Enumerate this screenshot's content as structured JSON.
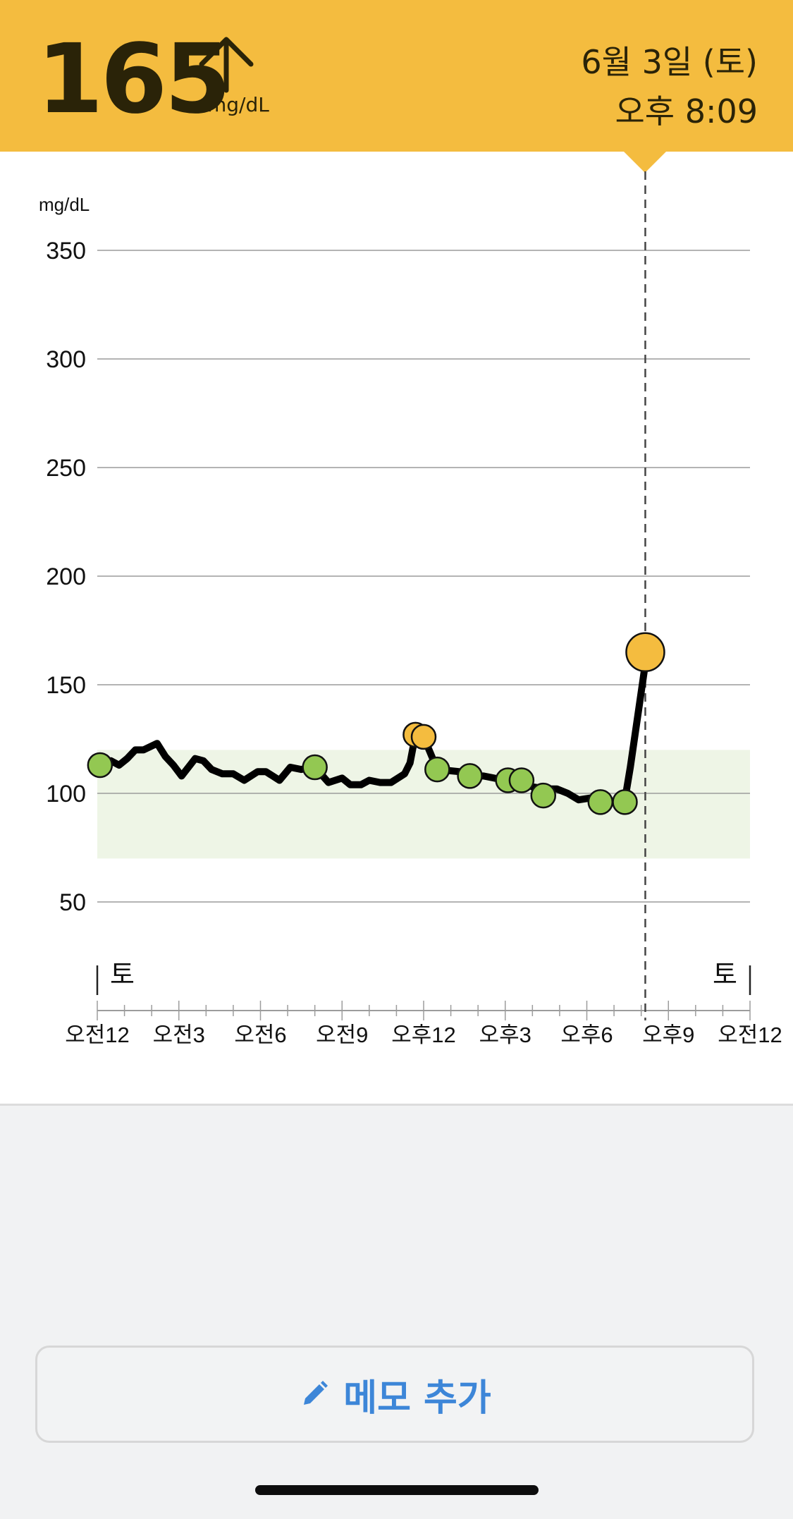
{
  "header": {
    "reading": "165",
    "unit": "mg/dL",
    "trend": "up-arrow-icon",
    "date": "6월 3일 (토)",
    "time": "오후 8:09",
    "background_color": "#f4bc3f"
  },
  "chart_data": {
    "type": "line",
    "ylabel": "mg/dL",
    "ylim": [
      20,
      350
    ],
    "yticks": [
      350,
      300,
      250,
      200,
      150,
      100,
      50
    ],
    "xlim": [
      0,
      24
    ],
    "xticks": [
      {
        "value": 0,
        "label": "오전12"
      },
      {
        "value": 3,
        "label": "오전3"
      },
      {
        "value": 6,
        "label": "오전6"
      },
      {
        "value": 9,
        "label": "오전9"
      },
      {
        "value": 12,
        "label": "오후12"
      },
      {
        "value": 15,
        "label": "오후3"
      },
      {
        "value": 18,
        "label": "오후6"
      },
      {
        "value": 21,
        "label": "오후9"
      },
      {
        "value": 24,
        "label": "오전12"
      }
    ],
    "day_labels": [
      {
        "value": 0,
        "label": "토"
      },
      {
        "value": 24,
        "label": "토"
      }
    ],
    "target_range": [
      70,
      120
    ],
    "target_range_color": "#eef5e6",
    "line_color": "#000000",
    "in_range_color": "#93c852",
    "high_color": "#f4bc3f",
    "series": [
      {
        "values": [
          [
            0.1,
            113
          ],
          [
            0.5,
            115
          ],
          [
            0.8,
            113
          ],
          [
            1.1,
            116
          ],
          [
            1.4,
            120
          ],
          [
            1.7,
            120
          ],
          [
            2.2,
            123
          ],
          [
            2.5,
            117
          ],
          [
            2.8,
            113
          ],
          [
            3.1,
            108
          ],
          [
            3.6,
            116
          ],
          [
            3.9,
            115
          ],
          [
            4.2,
            111
          ],
          [
            4.6,
            109
          ],
          [
            5.0,
            109
          ],
          [
            5.4,
            106
          ],
          [
            5.9,
            110
          ],
          [
            6.2,
            110
          ],
          [
            6.7,
            106
          ],
          [
            7.1,
            112
          ],
          [
            7.5,
            111
          ],
          [
            8.0,
            112
          ],
          [
            8.5,
            105
          ],
          [
            9.0,
            107
          ],
          [
            9.3,
            104
          ],
          [
            9.7,
            104
          ],
          [
            10.0,
            106
          ],
          [
            10.4,
            105
          ],
          [
            10.8,
            105
          ],
          [
            11.3,
            109
          ],
          [
            11.5,
            114
          ],
          [
            11.7,
            127
          ],
          [
            12.0,
            126
          ],
          [
            12.5,
            111
          ],
          [
            13.3,
            110
          ],
          [
            13.7,
            108
          ],
          [
            14.2,
            108
          ],
          [
            14.6,
            107
          ],
          [
            15.1,
            106
          ],
          [
            15.6,
            106
          ],
          [
            16.0,
            103
          ],
          [
            16.5,
            102
          ],
          [
            16.9,
            102
          ],
          [
            17.3,
            100
          ],
          [
            17.7,
            97
          ],
          [
            18.2,
            98
          ],
          [
            18.5,
            96
          ],
          [
            19.1,
            96
          ],
          [
            19.4,
            97
          ],
          [
            19.6,
            112
          ],
          [
            20.2,
            164
          ]
        ]
      }
    ],
    "points": [
      {
        "x": 0.1,
        "y": 113,
        "level": "in-range"
      },
      {
        "x": 8.0,
        "y": 112,
        "level": "in-range"
      },
      {
        "x": 11.7,
        "y": 127,
        "level": "high"
      },
      {
        "x": 12.0,
        "y": 126,
        "level": "high"
      },
      {
        "x": 12.5,
        "y": 111,
        "level": "in-range"
      },
      {
        "x": 13.7,
        "y": 108,
        "level": "in-range"
      },
      {
        "x": 15.1,
        "y": 106,
        "level": "in-range"
      },
      {
        "x": 15.6,
        "y": 106,
        "level": "in-range"
      },
      {
        "x": 16.4,
        "y": 99,
        "level": "in-range"
      },
      {
        "x": 18.5,
        "y": 96,
        "level": "in-range"
      },
      {
        "x": 19.4,
        "y": 96,
        "level": "in-range"
      },
      {
        "x": 20.15,
        "y": 165,
        "level": "current"
      }
    ],
    "current_time": 20.15,
    "grid": true
  },
  "memo": {
    "label": "메모 추가",
    "icon": "pencil-icon"
  }
}
